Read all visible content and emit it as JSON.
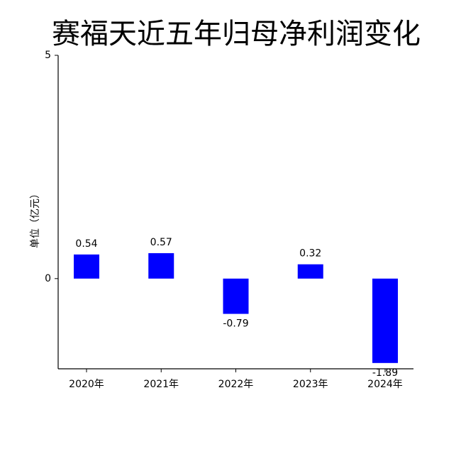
{
  "chart_data": {
    "type": "bar",
    "title": "赛福天近五年归母净利润变化",
    "y_label": "单位（亿元）",
    "categories": [
      "2020年",
      "2021年",
      "2022年",
      "2023年",
      "2024年"
    ],
    "values": [
      0.54,
      0.57,
      -0.79,
      0.32,
      -1.89
    ],
    "color": "#0000ff",
    "ylim": [
      -2.02,
      5
    ],
    "yticks": [
      0,
      5
    ],
    "grid": false
  }
}
